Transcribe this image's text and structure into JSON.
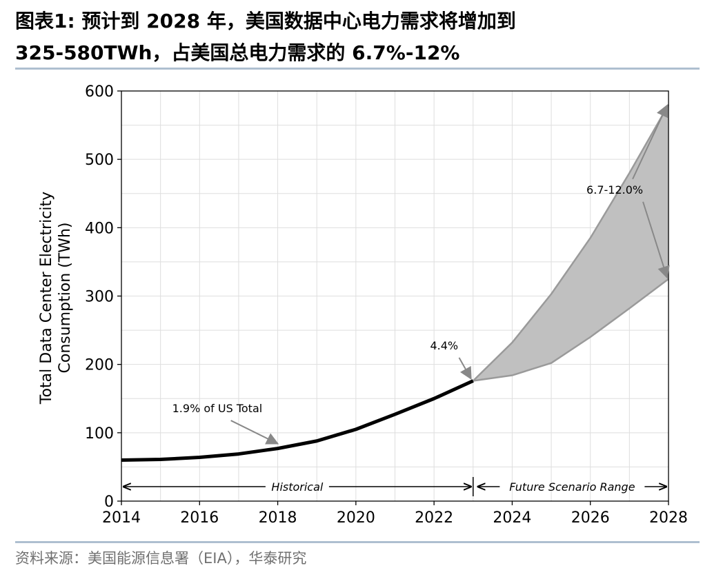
{
  "title": {
    "line1": "图表1:  预计到  2028 年，美国数据中心电力需求将增加到",
    "line2": "325-580TWh，占美国总电力需求的 6.7%-12%"
  },
  "source": "资料来源：美国能源信息署（EIA），华泰研究",
  "chart_data": {
    "type": "line",
    "xlabel": "",
    "ylabel_line1": "Total Data Center Electricity",
    "ylabel_line2": "Consumption (TWh)",
    "xlim": [
      2014,
      2028
    ],
    "ylim": [
      0,
      600
    ],
    "grid": true,
    "x_ticks": [
      "2014",
      "2016",
      "2018",
      "2020",
      "2022",
      "2024",
      "2026",
      "2028"
    ],
    "y_ticks": [
      "0",
      "100",
      "200",
      "300",
      "400",
      "500",
      "600"
    ],
    "series": [
      {
        "name": "",
        "x": [
          2014,
          2015,
          2016,
          2017,
          2018,
          2019,
          2020,
          2021,
          2022,
          2023
        ],
        "y": [
          60,
          61,
          64,
          69,
          77,
          88,
          105,
          127,
          150,
          176
        ]
      }
    ],
    "range_upper": {
      "x": [
        2023,
        2024,
        2025,
        2026,
        2027,
        2028
      ],
      "y": [
        176,
        232,
        303,
        385,
        480,
        580
      ]
    },
    "range_lower": {
      "x": [
        2023,
        2024,
        2025,
        2026,
        2027,
        2028
      ],
      "y": [
        176,
        184,
        202,
        240,
        282,
        325
      ]
    },
    "annotations": [
      {
        "text": "1.9% of US Total",
        "x": 2015.3,
        "y": 130,
        "target_x": 2018,
        "target_y": 80
      },
      {
        "text": "4.4%",
        "x": 2021.9,
        "y": 222,
        "target_x": 2023,
        "target_y": 177
      },
      {
        "text": "6.7-12.0%",
        "x": 2025.9,
        "y": 450,
        "targets": [
          [
            2028,
            580
          ],
          [
            2028,
            325
          ]
        ]
      }
    ],
    "spans": [
      {
        "label": "Historical",
        "from": 2014,
        "to": 2023
      },
      {
        "label": "Future Scenario Range",
        "from": 2023,
        "to": 2028
      }
    ],
    "colors": {
      "line": "#000000",
      "range_fill": "#c0c0c0",
      "range_edge": "#9a9a9a",
      "grid": "#dedede"
    }
  }
}
